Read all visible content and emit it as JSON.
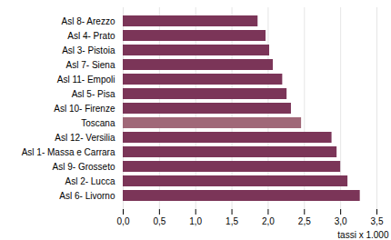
{
  "chart_data": {
    "type": "bar",
    "orientation": "horizontal",
    "categories": [
      "Asl 6- Livorno",
      "Asl 2- Lucca",
      "Asl 9- Grosseto",
      "Asl 1- Massa e Carrara",
      "Asl 12- Versilia",
      "Toscana",
      "Asl 10- Firenze",
      "Asl 5- Pisa",
      "Asl 11- Empoli",
      "Asl 7- Siena",
      "Asl 3- Pistoia",
      "Asl 4- Prato",
      "Asl 8- Arezzo"
    ],
    "values": [
      3.27,
      3.1,
      3.0,
      2.95,
      2.88,
      2.46,
      2.32,
      2.26,
      2.2,
      2.07,
      2.02,
      1.97,
      1.86
    ],
    "colors": [
      "#7B3558",
      "#7B3558",
      "#7B3558",
      "#7B3558",
      "#7B3558",
      "#A06878",
      "#7B3558",
      "#7B3558",
      "#7B3558",
      "#7B3558",
      "#7B3558",
      "#7B3558",
      "#7B3558"
    ],
    "xlabel": "tassi x 1.000",
    "xlim": [
      0,
      3.5
    ],
    "xticks": [
      {
        "value": 0.0,
        "label": "0,0"
      },
      {
        "value": 0.5,
        "label": "0,5"
      },
      {
        "value": 1.0,
        "label": "1,0"
      },
      {
        "value": 1.5,
        "label": "1,5"
      },
      {
        "value": 2.0,
        "label": "2,0"
      },
      {
        "value": 2.5,
        "label": "2,5"
      },
      {
        "value": 3.0,
        "label": "3,0"
      },
      {
        "value": 3.5,
        "label": "3,5"
      }
    ],
    "grid": true
  }
}
